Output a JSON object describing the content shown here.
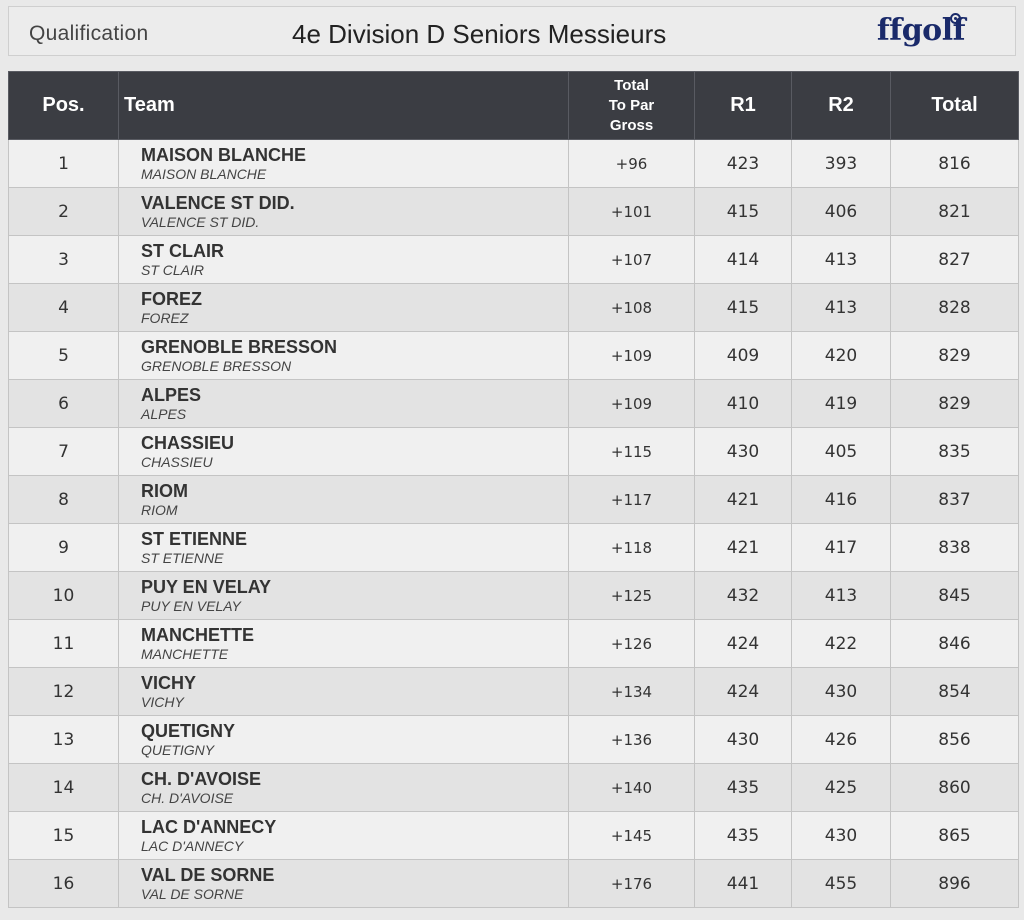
{
  "header": {
    "subtitle": "Qualification",
    "title": "4e Division D Seniors Messieurs",
    "logo_text": "ffgolf"
  },
  "table": {
    "columns": {
      "pos": "Pos.",
      "team": "Team",
      "topar_line1": "Total",
      "topar_line2": "To Par",
      "topar_line3": "Gross",
      "r1": "R1",
      "r2": "R2",
      "total": "Total"
    },
    "rows": [
      {
        "pos": "1",
        "team": "MAISON BLANCHE",
        "club": "MAISON BLANCHE",
        "topar": "+96",
        "r1": "423",
        "r2": "393",
        "total": "816"
      },
      {
        "pos": "2",
        "team": "VALENCE ST DID.",
        "club": "VALENCE ST DID.",
        "topar": "+101",
        "r1": "415",
        "r2": "406",
        "total": "821"
      },
      {
        "pos": "3",
        "team": "ST CLAIR",
        "club": "ST CLAIR",
        "topar": "+107",
        "r1": "414",
        "r2": "413",
        "total": "827"
      },
      {
        "pos": "4",
        "team": "FOREZ",
        "club": "FOREZ",
        "topar": "+108",
        "r1": "415",
        "r2": "413",
        "total": "828"
      },
      {
        "pos": "5",
        "team": "GRENOBLE BRESSON",
        "club": "GRENOBLE BRESSON",
        "topar": "+109",
        "r1": "409",
        "r2": "420",
        "total": "829"
      },
      {
        "pos": "6",
        "team": "ALPES",
        "club": "ALPES",
        "topar": "+109",
        "r1": "410",
        "r2": "419",
        "total": "829"
      },
      {
        "pos": "7",
        "team": "CHASSIEU",
        "club": "CHASSIEU",
        "topar": "+115",
        "r1": "430",
        "r2": "405",
        "total": "835"
      },
      {
        "pos": "8",
        "team": "RIOM",
        "club": "RIOM",
        "topar": "+117",
        "r1": "421",
        "r2": "416",
        "total": "837"
      },
      {
        "pos": "9",
        "team": "ST ETIENNE",
        "club": "ST ETIENNE",
        "topar": "+118",
        "r1": "421",
        "r2": "417",
        "total": "838"
      },
      {
        "pos": "10",
        "team": "PUY EN VELAY",
        "club": "PUY EN VELAY",
        "topar": "+125",
        "r1": "432",
        "r2": "413",
        "total": "845"
      },
      {
        "pos": "11",
        "team": "MANCHETTE",
        "club": "MANCHETTE",
        "topar": "+126",
        "r1": "424",
        "r2": "422",
        "total": "846"
      },
      {
        "pos": "12",
        "team": "VICHY",
        "club": "VICHY",
        "topar": "+134",
        "r1": "424",
        "r2": "430",
        "total": "854"
      },
      {
        "pos": "13",
        "team": "QUETIGNY",
        "club": "QUETIGNY",
        "topar": "+136",
        "r1": "430",
        "r2": "426",
        "total": "856"
      },
      {
        "pos": "14",
        "team": "CH. D'AVOISE",
        "club": "CH. D'AVOISE",
        "topar": "+140",
        "r1": "435",
        "r2": "425",
        "total": "860"
      },
      {
        "pos": "15",
        "team": "LAC D'ANNECY",
        "club": "LAC D'ANNECY",
        "topar": "+145",
        "r1": "435",
        "r2": "430",
        "total": "865"
      },
      {
        "pos": "16",
        "team": "VAL DE SORNE",
        "club": "VAL DE SORNE",
        "topar": "+176",
        "r1": "441",
        "r2": "455",
        "total": "896"
      }
    ]
  },
  "colors": {
    "header_bg": "#3b3d43",
    "row_light": "#f0f0f0",
    "row_dark": "#e3e3e3",
    "logo": "#1a2a6a"
  }
}
